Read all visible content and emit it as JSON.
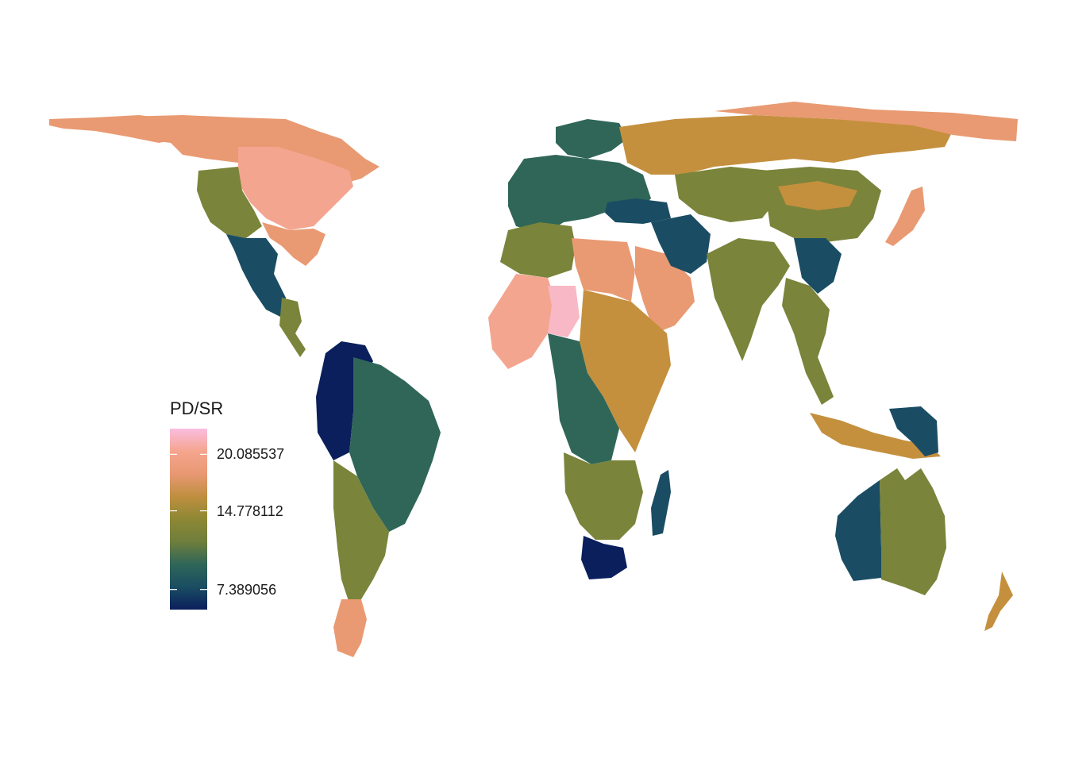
{
  "legend": {
    "title": "PD/SR",
    "ticks": [
      {
        "label": "20.085537",
        "value": 20.085537
      },
      {
        "label": "14.778112",
        "value": 14.778112
      },
      {
        "label": "7.389056",
        "value": 7.389056
      }
    ],
    "range": [
      5.5,
      22.5
    ],
    "gradient_colors": [
      "#0b1f5c",
      "#1a4d63",
      "#2f6658",
      "#6f7e3c",
      "#8d8834",
      "#bf8f3f",
      "#e99873",
      "#f5a58e",
      "#fbbde0"
    ]
  },
  "colors": {
    "very_low": "#0b1f5c",
    "low": "#1a4d63",
    "mid_low": "#2f6658",
    "mid": "#7a843a",
    "mid_high": "#c4903e",
    "high": "#e99a72",
    "very_high": "#f4a590",
    "max": "#f9b8c6",
    "peak": "#fbbde0"
  },
  "regions": [
    {
      "name": "canada",
      "tier": "high"
    },
    {
      "name": "alaska",
      "tier": "high"
    },
    {
      "name": "usa-north",
      "tier": "very_high"
    },
    {
      "name": "usa-west",
      "tier": "mid"
    },
    {
      "name": "usa-south",
      "tier": "high"
    },
    {
      "name": "mexico",
      "tier": "low"
    },
    {
      "name": "central-america",
      "tier": "mid"
    },
    {
      "name": "south-america-north",
      "tier": "very_low"
    },
    {
      "name": "brazil",
      "tier": "mid_low"
    },
    {
      "name": "south-america-south",
      "tier": "mid"
    },
    {
      "name": "patagonia",
      "tier": "high"
    },
    {
      "name": "europe",
      "tier": "mid_low"
    },
    {
      "name": "scandinavia",
      "tier": "mid_low"
    },
    {
      "name": "russia",
      "tier": "mid_high"
    },
    {
      "name": "siberia-north",
      "tier": "high"
    },
    {
      "name": "north-africa",
      "tier": "mid"
    },
    {
      "name": "sahara-west",
      "tier": "very_high"
    },
    {
      "name": "sahel",
      "tier": "max"
    },
    {
      "name": "egypt-sudan",
      "tier": "high"
    },
    {
      "name": "arabia",
      "tier": "high"
    },
    {
      "name": "east-africa",
      "tier": "mid_high"
    },
    {
      "name": "central-africa",
      "tier": "mid_low"
    },
    {
      "name": "southern-africa",
      "tier": "mid"
    },
    {
      "name": "south-africa",
      "tier": "very_low"
    },
    {
      "name": "madagascar",
      "tier": "low"
    },
    {
      "name": "turkey",
      "tier": "low"
    },
    {
      "name": "iran",
      "tier": "low"
    },
    {
      "name": "central-asia",
      "tier": "mid"
    },
    {
      "name": "india",
      "tier": "mid"
    },
    {
      "name": "china",
      "tier": "mid"
    },
    {
      "name": "china-south",
      "tier": "low"
    },
    {
      "name": "mongolia",
      "tier": "mid_high"
    },
    {
      "name": "japan",
      "tier": "high"
    },
    {
      "name": "southeast-asia",
      "tier": "mid"
    },
    {
      "name": "indonesia",
      "tier": "mid_high"
    },
    {
      "name": "new-guinea",
      "tier": "low"
    },
    {
      "name": "australia-west",
      "tier": "low"
    },
    {
      "name": "australia-central",
      "tier": "mid"
    },
    {
      "name": "australia-east",
      "tier": "mid"
    },
    {
      "name": "new-zealand",
      "tier": "mid_high"
    }
  ]
}
